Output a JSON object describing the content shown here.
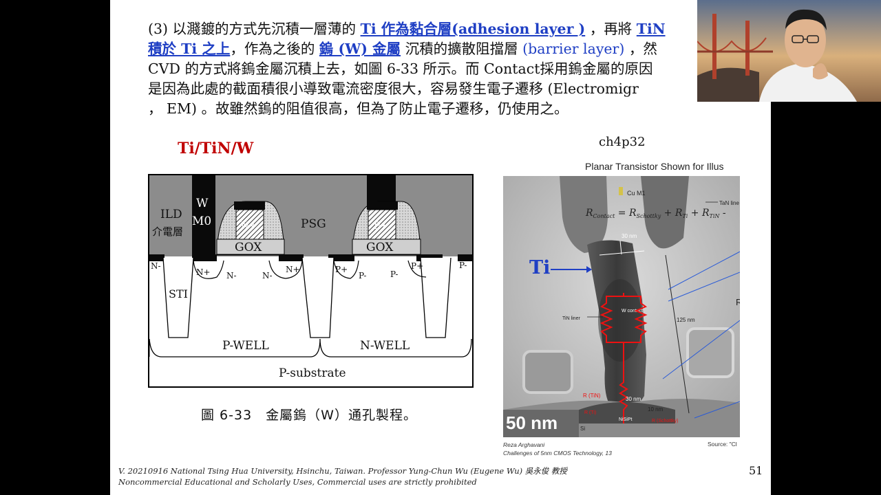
{
  "slide": {
    "paragraph": {
      "l1_a": "(3) 以濺鍍的方式先沉積一層薄的 ",
      "l1_b": "Ti 作為黏合層(adhesion layer )",
      "l1_c": " ，再將 ",
      "l1_d": "TiN",
      "l2_a": "積於 Ti 之上",
      "l2_b": "，作為之後的 ",
      "l2_c": "鎢 (W) 金屬",
      "l2_d": " 沉積的擴散阻擋層 ",
      "l2_e": "(barrier layer)",
      "l2_f": " ，然",
      "l3": "CVD 的方式將鎢金屬沉積上去，如圖 6-33 所示。而 Contact採用鎢金屬的原因",
      "l4": "是因為此處的截面積很小導致電流密度很大，容易發生電子遷移 (Electromigr",
      "l5": "， EM) 。故雖然鎢的阻值很高，但為了防止電子遷移，仍使用之。"
    },
    "stack_title": "Ti/TiN/W",
    "ref_code": "ch4p32",
    "figure_caption": "圖 6-33　金屬鎢（W）通孔製程。",
    "diagram": {
      "ild": "ILD",
      "ild_cn": "介電層",
      "w": "W",
      "m0": "M0",
      "psg": "PSG",
      "gox1": "GOX",
      "gox2": "GOX",
      "n_minus_left": "N-",
      "p_minus_right": "P-",
      "n_plus_1": "N+",
      "n_minus_1": "N-",
      "n_minus_2": "N-",
      "n_plus_2": "N+",
      "p_plus_1": "P+",
      "p_minus_1": "P-",
      "p_minus_2": "P-",
      "p_plus_2": "P+",
      "sti": "STI",
      "pwell": "P-WELL",
      "nwell": "N-WELL",
      "psub": "P-substrate",
      "nplus_gate1": "N+",
      "pplus_gate2": "P+"
    },
    "tem": {
      "title": "Planar Transistor Shown for Illus",
      "cu": "Cu M1",
      "tan": "TaN line",
      "eq_r": "R",
      "eq_contact": "Contact",
      "eq_rest": " = R",
      "eq_schottky": "Schottky",
      "eq_plus1": " + R",
      "eq_ti": "Ti",
      "eq_plus2": " + R",
      "eq_tin": "TiN",
      "eq_tail": " -",
      "d30top": "30 nm",
      "w_contact": "W contact",
      "tin_liner": "TiN liner",
      "d125": "125 nm",
      "r_tin": "R (TiN)",
      "r_ti": "R (Ti)",
      "r_schottky": "R (Schottky)",
      "d30bot": "30 nm",
      "d10": "10 nm",
      "nisipt": "NiSiPt",
      "si": "Si",
      "scale": "50 nm",
      "side_r": "R",
      "ti_label": "Ti"
    },
    "tem_credit_1": "Reza Arghavani",
    "tem_credit_2": "Challenges of 5nm CMOS Technology,  13",
    "tem_source": "Source: \"Cl",
    "footer_1": "V. 20210916 National Tsing Hua University, Hsinchu, Taiwan. Professor Yung-Chun Wu (Eugene Wu) 吳永俊 教授",
    "footer_2": "Noncommercial Educational and Scholarly Uses, Commercial uses are strictly prohibited",
    "page_number": "51"
  },
  "colors": {
    "link_blue": "#1f3fc4",
    "title_red": "#c00000",
    "letterbox": "#000000"
  }
}
